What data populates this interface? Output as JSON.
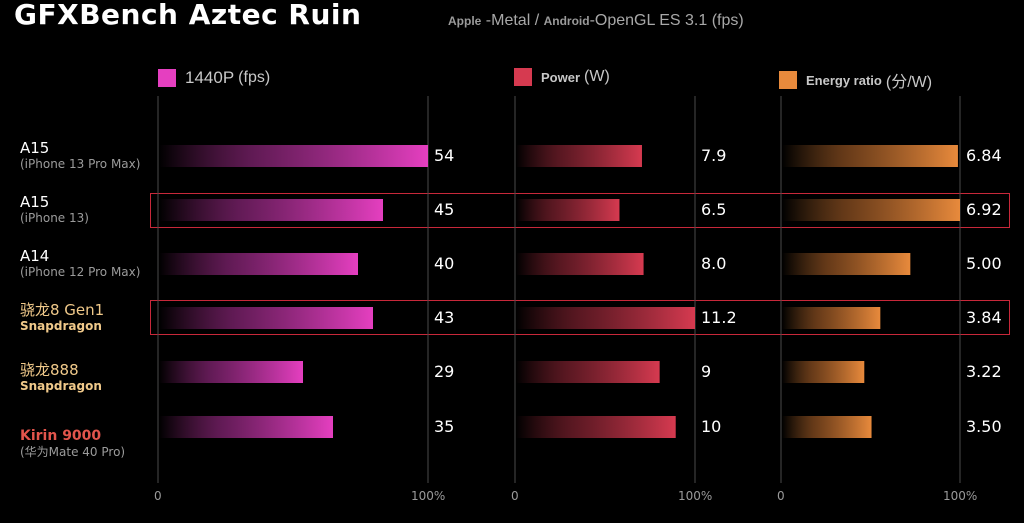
{
  "title": "GFXBench Aztec Ruin",
  "subtitle": {
    "apple": "Apple",
    "metal": " -Metal / ",
    "android": "Android",
    "rest": "-OpenGL ES 3.1 (fps)"
  },
  "legend": [
    {
      "label": "1440P",
      "unit": "(fps)",
      "color": "#e53fc0"
    },
    {
      "label": "Power",
      "unit": "(W)",
      "color": "#d63a50"
    },
    {
      "label": "Energy ratio",
      "unit": "(分/W)",
      "color": "#e88a3c"
    }
  ],
  "devices": [
    {
      "line1": "A15",
      "line2": "(iPhone 13 Pro Max)",
      "style": "apple"
    },
    {
      "line1": "A15",
      "line2": "(iPhone 13)",
      "style": "apple"
    },
    {
      "line1": "A14",
      "line2": "(iPhone 12 Pro Max)",
      "style": "apple"
    },
    {
      "line1": "骁龙8 Gen1",
      "line2": "Snapdragon",
      "style": "snapdragon"
    },
    {
      "line1": "骁龙888",
      "line2": "Snapdragon",
      "style": "snapdragon"
    },
    {
      "line1": "Kirin 9000",
      "line2": "(华为Mate 40 Pro)",
      "style": "kirin"
    }
  ],
  "highlighted_rows": [
    1,
    3
  ],
  "axis_ticks": [
    "0",
    "100%"
  ],
  "value_labels": {
    "fps": [
      "54",
      "45",
      "40",
      "43",
      "29",
      "35"
    ],
    "power": [
      "7.9",
      "6.5",
      "8.0",
      "11.2",
      "9",
      "10"
    ],
    "energy": [
      "6.84",
      "6.92",
      "5.00",
      "3.84",
      "3.22",
      "3.50"
    ]
  },
  "chart_data": {
    "type": "bar",
    "orientation": "horizontal",
    "title": "GFXBench Aztec Ruin",
    "subtitle": "Apple -Metal / Android-OpenGL ES 3.1 (fps)",
    "categories": [
      "A15 (iPhone 13 Pro Max)",
      "A15 (iPhone 13)",
      "A14 (iPhone 12 Pro Max)",
      "骁龙8 Gen1 Snapdragon",
      "骁龙888 Snapdragon",
      "Kirin 9000 (华为Mate 40 Pro)"
    ],
    "series": [
      {
        "name": "1440P (fps)",
        "values": [
          54,
          45,
          40,
          43,
          29,
          35
        ],
        "max": 54
      },
      {
        "name": "Power (W)",
        "values": [
          7.9,
          6.5,
          8.0,
          11.2,
          9,
          10
        ],
        "max": 11.2
      },
      {
        "name": "Energy ratio (分/W)",
        "values": [
          6.84,
          6.92,
          5.0,
          3.84,
          3.22,
          3.5
        ],
        "max": 6.92
      }
    ],
    "xlim": [
      "0",
      "100%"
    ],
    "grid": true,
    "legend_position": "top"
  }
}
